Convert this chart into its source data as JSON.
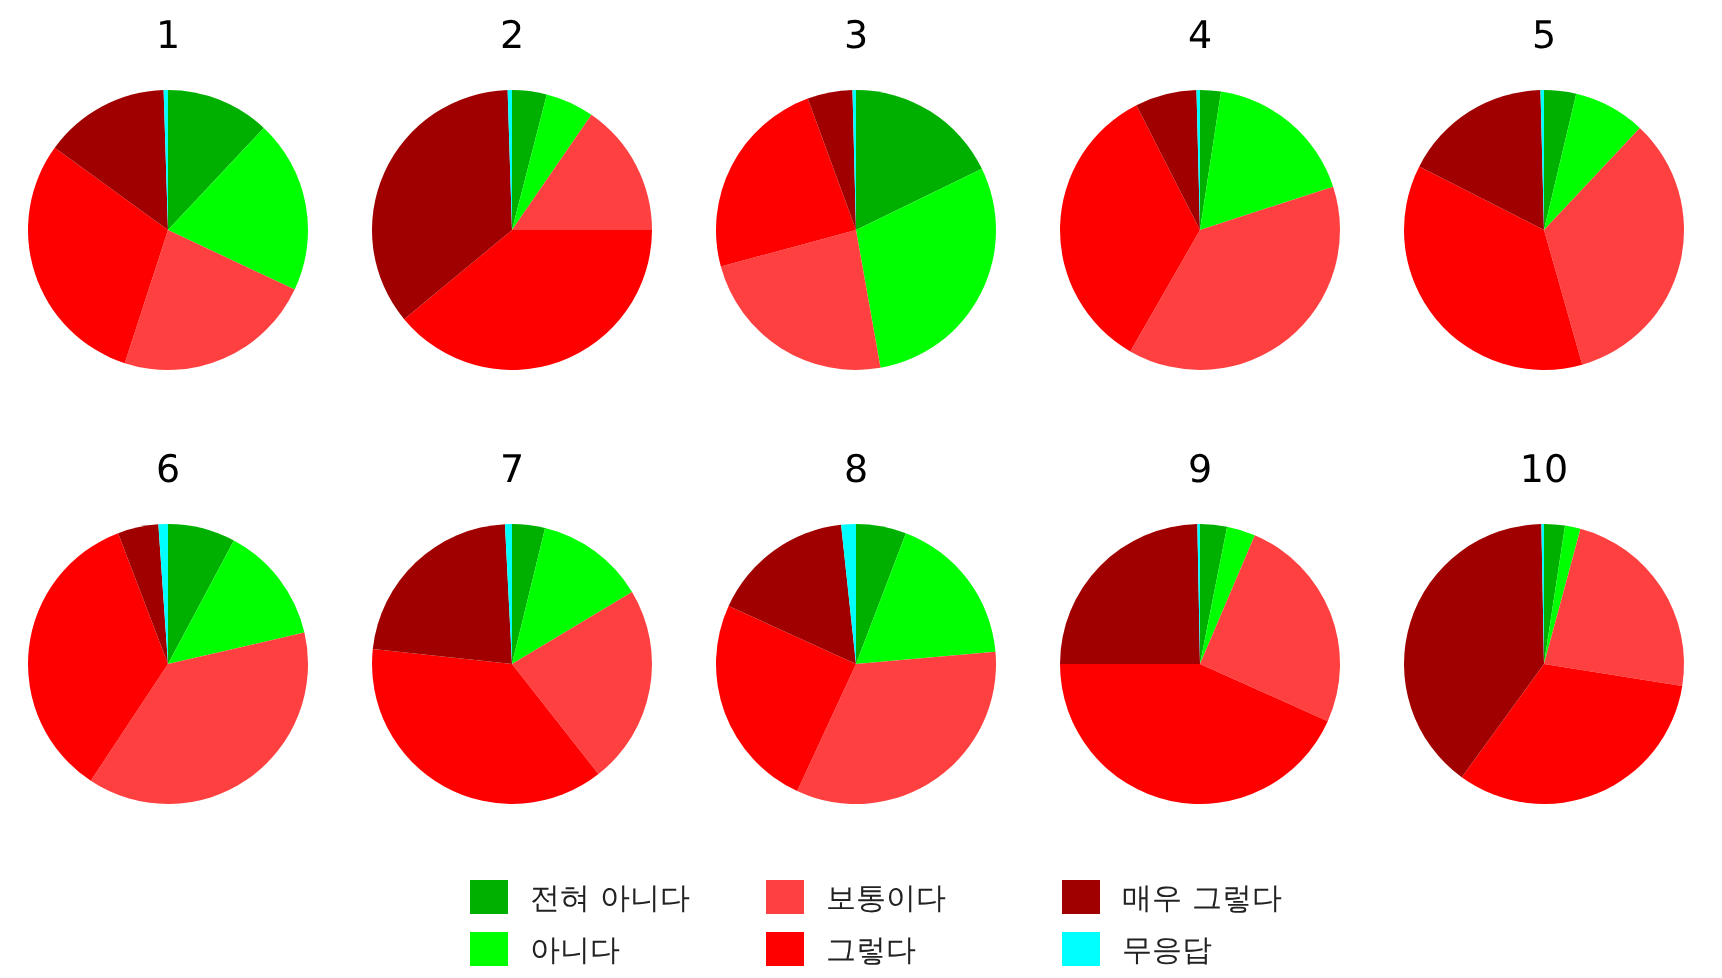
{
  "chart_data": [
    {
      "type": "pie",
      "title": "1",
      "categories": [
        "전혀 아니다",
        "아니다",
        "보통이다",
        "그렇다",
        "매우 그렇다",
        "무응답"
      ],
      "values": [
        12,
        20,
        23,
        30,
        14.5,
        0.5
      ],
      "colors": [
        "#00b000",
        "#00ff00",
        "#ff4040",
        "#ff0000",
        "#a00000",
        "#00ffff"
      ],
      "legend": "bottom"
    },
    {
      "type": "pie",
      "title": "2",
      "categories": [
        null,
        null,
        null,
        null,
        null,
        null
      ],
      "values": [
        4,
        5.6,
        15.4,
        39,
        35.5,
        0.5
      ],
      "colors": [
        "#00b000",
        "#00ff00",
        "#ff4040",
        "#ff0000",
        "#a00000",
        "#00ffff"
      ]
    },
    {
      "type": "pie",
      "title": "3",
      "categories": [
        null,
        null,
        null,
        null,
        null,
        null
      ],
      "values": [
        17.8,
        29.4,
        23.6,
        23.6,
        5.2,
        0.4
      ],
      "colors": [
        "#00b000",
        "#00ff00",
        "#ff4040",
        "#ff0000",
        "#a00000",
        "#00ffff"
      ]
    },
    {
      "type": "pie",
      "title": "4",
      "categories": [
        null,
        null,
        null,
        null,
        null,
        null
      ],
      "values": [
        2.4,
        17.6,
        38.3,
        34.2,
        7.1,
        0.4
      ],
      "colors": [
        "#00b000",
        "#00ff00",
        "#ff4040",
        "#ff0000",
        "#a00000",
        "#00ffff"
      ]
    },
    {
      "type": "pie",
      "title": "5",
      "categories": [
        null,
        null,
        null,
        null,
        null,
        null
      ],
      "values": [
        3.7,
        8.3,
        33.6,
        36.9,
        17.1,
        0.4
      ],
      "colors": [
        "#00b000",
        "#00ff00",
        "#ff4040",
        "#ff0000",
        "#a00000",
        "#00ffff"
      ]
    },
    {
      "type": "pie",
      "title": "6",
      "categories": [
        null,
        null,
        null,
        null,
        null,
        null
      ],
      "values": [
        7.8,
        13.6,
        37.9,
        34.9,
        4.7,
        1.1
      ],
      "colors": [
        "#00b000",
        "#00ff00",
        "#ff4040",
        "#ff0000",
        "#a00000",
        "#00ffff"
      ]
    },
    {
      "type": "pie",
      "title": "7",
      "categories": [
        null,
        null,
        null,
        null,
        null,
        null
      ],
      "values": [
        3.8,
        12.6,
        23,
        37.3,
        22.5,
        0.8
      ],
      "colors": [
        "#00b000",
        "#00ff00",
        "#ff4040",
        "#ff0000",
        "#a00000",
        "#00ffff"
      ]
    },
    {
      "type": "pie",
      "title": "8",
      "categories": [
        null,
        null,
        null,
        null,
        null,
        null
      ],
      "values": [
        5.8,
        17.8,
        33.3,
        24.9,
        16.5,
        1.7
      ],
      "colors": [
        "#00b000",
        "#00ff00",
        "#ff4040",
        "#ff0000",
        "#a00000",
        "#00ffff"
      ]
    },
    {
      "type": "pie",
      "title": "9",
      "categories": [
        null,
        null,
        null,
        null,
        null,
        null
      ],
      "values": [
        3.1,
        3.3,
        25.3,
        43.3,
        24.7,
        0.3
      ],
      "colors": [
        "#00b000",
        "#00ff00",
        "#ff4040",
        "#ff0000",
        "#a00000",
        "#00ffff"
      ]
    },
    {
      "type": "pie",
      "title": "10",
      "categories": [
        null,
        null,
        null,
        null,
        null,
        null
      ],
      "values": [
        2.4,
        1.8,
        23.3,
        32.5,
        39.7,
        0.3
      ],
      "colors": [
        "#00b000",
        "#00ff00",
        "#ff4040",
        "#ff0000",
        "#a00000",
        "#00ffff"
      ]
    }
  ]
}
